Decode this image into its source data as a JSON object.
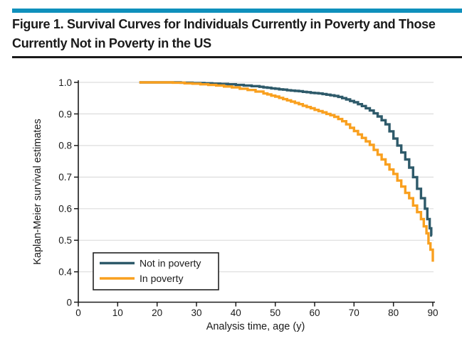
{
  "header": {
    "accent_bar_color": "#0F90BC",
    "title_lines": [
      "Figure 1. Survival Curves for Individuals Currently in Poverty and Those",
      "Currently Not in Poverty in the US"
    ]
  },
  "chart_data": {
    "type": "line",
    "subtype": "kaplan-meier-step",
    "title": "",
    "xlabel": "Analysis time, age (y)",
    "ylabel": "Kaplan-Meier survival estimates",
    "xlim": [
      0,
      90
    ],
    "ylim": [
      0.4,
      1.0
    ],
    "axis_break_label": "0",
    "grid": "horizontal",
    "gridline_color": "#DDDDDD",
    "axis_color": "#1a1a1a",
    "x_ticks": [
      0,
      10,
      20,
      30,
      40,
      50,
      60,
      70,
      80,
      90
    ],
    "y_ticks": [
      {
        "label": "1.0",
        "v": 1.0
      },
      {
        "label": "0.9",
        "v": 0.9
      },
      {
        "label": "0.8",
        "v": 0.8
      },
      {
        "label": "0.7",
        "v": 0.7
      },
      {
        "label": "0.6",
        "v": 0.6
      },
      {
        "label": "0.5",
        "v": 0.5
      },
      {
        "label": "0.4",
        "v": 0.4
      },
      {
        "label": "0",
        "v": "break"
      }
    ],
    "legend": {
      "position": "lower-left",
      "border": true
    },
    "series": [
      {
        "name": "Not in poverty",
        "color": "#2E5A6A",
        "points": [
          [
            15.5,
            1.0
          ],
          [
            22,
            1.0
          ],
          [
            26,
            0.999
          ],
          [
            29,
            0.998
          ],
          [
            32,
            0.997
          ],
          [
            34,
            0.996
          ],
          [
            36,
            0.995
          ],
          [
            38,
            0.994
          ],
          [
            40,
            0.992
          ],
          [
            42,
            0.99
          ],
          [
            44,
            0.988
          ],
          [
            46,
            0.986
          ],
          [
            47,
            0.984
          ],
          [
            48,
            0.983
          ],
          [
            49,
            0.981
          ],
          [
            50,
            0.98
          ],
          [
            51,
            0.978
          ],
          [
            52,
            0.977
          ],
          [
            53,
            0.975
          ],
          [
            54,
            0.974
          ],
          [
            55,
            0.973
          ],
          [
            56,
            0.972
          ],
          [
            57,
            0.97
          ],
          [
            58,
            0.969
          ],
          [
            59,
            0.967
          ],
          [
            60,
            0.966
          ],
          [
            61,
            0.965
          ],
          [
            62,
            0.963
          ],
          [
            63,
            0.961
          ],
          [
            64,
            0.959
          ],
          [
            65,
            0.957
          ],
          [
            66,
            0.954
          ],
          [
            67,
            0.95
          ],
          [
            68,
            0.946
          ],
          [
            69,
            0.941
          ],
          [
            70,
            0.937
          ],
          [
            71,
            0.931
          ],
          [
            72,
            0.925
          ],
          [
            73,
            0.918
          ],
          [
            74,
            0.911
          ],
          [
            75,
            0.902
          ],
          [
            76,
            0.892
          ],
          [
            77,
            0.88
          ],
          [
            78,
            0.867
          ],
          [
            79,
            0.845
          ],
          [
            80,
            0.822
          ],
          [
            81,
            0.8
          ],
          [
            82,
            0.778
          ],
          [
            83,
            0.756
          ],
          [
            84,
            0.73
          ],
          [
            85,
            0.7
          ],
          [
            86,
            0.663
          ],
          [
            87,
            0.633
          ],
          [
            88,
            0.6
          ],
          [
            88.6,
            0.567
          ],
          [
            89.2,
            0.538
          ],
          [
            89.6,
            0.515
          ],
          [
            89.8,
            0.515
          ]
        ]
      },
      {
        "name": "In poverty",
        "color": "#F9A01F",
        "points": [
          [
            15.5,
            1.0
          ],
          [
            21,
            1.0
          ],
          [
            24,
            0.999
          ],
          [
            27,
            0.997
          ],
          [
            29,
            0.996
          ],
          [
            31,
            0.994
          ],
          [
            33,
            0.992
          ],
          [
            35,
            0.99
          ],
          [
            37,
            0.987
          ],
          [
            39,
            0.984
          ],
          [
            41,
            0.98
          ],
          [
            43,
            0.976
          ],
          [
            45,
            0.971
          ],
          [
            47,
            0.965
          ],
          [
            48,
            0.962
          ],
          [
            49,
            0.958
          ],
          [
            50,
            0.955
          ],
          [
            51,
            0.951
          ],
          [
            52,
            0.947
          ],
          [
            53,
            0.943
          ],
          [
            54,
            0.939
          ],
          [
            55,
            0.935
          ],
          [
            56,
            0.931
          ],
          [
            57,
            0.926
          ],
          [
            58,
            0.922
          ],
          [
            59,
            0.918
          ],
          [
            60,
            0.913
          ],
          [
            61,
            0.909
          ],
          [
            62,
            0.905
          ],
          [
            63,
            0.9
          ],
          [
            64,
            0.896
          ],
          [
            65,
            0.891
          ],
          [
            66,
            0.884
          ],
          [
            67,
            0.877
          ],
          [
            68,
            0.867
          ],
          [
            69,
            0.856
          ],
          [
            70,
            0.846
          ],
          [
            71,
            0.835
          ],
          [
            72,
            0.824
          ],
          [
            73,
            0.813
          ],
          [
            74,
            0.802
          ],
          [
            75,
            0.786
          ],
          [
            76,
            0.771
          ],
          [
            77,
            0.756
          ],
          [
            78,
            0.74
          ],
          [
            79,
            0.724
          ],
          [
            80,
            0.71
          ],
          [
            81,
            0.689
          ],
          [
            82,
            0.67
          ],
          [
            83,
            0.65
          ],
          [
            84,
            0.633
          ],
          [
            85,
            0.61
          ],
          [
            86,
            0.589
          ],
          [
            87,
            0.567
          ],
          [
            87.7,
            0.544
          ],
          [
            88.4,
            0.522
          ],
          [
            88.9,
            0.49
          ],
          [
            89.4,
            0.47
          ],
          [
            90,
            0.432
          ]
        ]
      }
    ]
  },
  "legend": {
    "items": [
      {
        "label": "Not in poverty",
        "color": "#2E5A6A"
      },
      {
        "label": "In poverty",
        "color": "#F9A01F"
      }
    ]
  }
}
